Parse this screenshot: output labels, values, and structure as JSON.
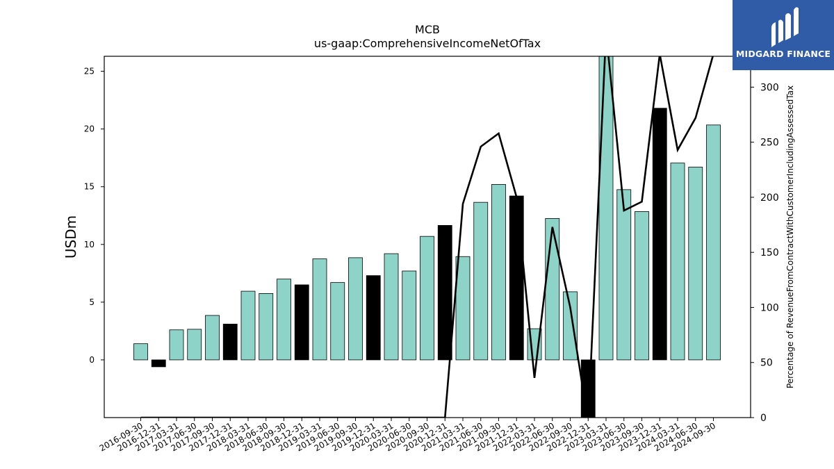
{
  "chart_data": {
    "type": "bar",
    "title": "MCB",
    "subtitle": "us-gaap:ComprehensiveIncomeNetOfTax",
    "ylabel": "USDm",
    "y2label": "Percentage of RevenueFromContractWithCustomerIncludingAssessedTax",
    "ylim": [
      -5,
      26.3
    ],
    "y2lim": [
      0,
      328
    ],
    "yticks": [
      0,
      5,
      10,
      15,
      20,
      25
    ],
    "y2ticks": [
      0,
      50,
      100,
      150,
      200,
      250,
      300
    ],
    "categories": [
      "2016-09-30",
      "2016-12-31",
      "2017-03-31",
      "2017-06-30",
      "2017-09-30",
      "2017-12-31",
      "2018-03-31",
      "2018-06-30",
      "2018-09-30",
      "2018-12-31",
      "2019-03-31",
      "2019-06-30",
      "2019-09-30",
      "2019-12-31",
      "2020-03-31",
      "2020-06-30",
      "2020-09-30",
      "2020-12-31",
      "2021-03-31",
      "2021-06-30",
      "2021-09-30",
      "2021-12-31",
      "2022-03-31",
      "2022-06-30",
      "2022-09-30",
      "2022-12-31",
      "2023-03-31",
      "2023-06-30",
      "2023-09-30",
      "2023-12-31",
      "2024-03-31",
      "2024-06-30",
      "2024-09-30"
    ],
    "series": [
      {
        "type": "bar",
        "axis": "left",
        "values": [
          1.4,
          -0.6,
          2.6,
          2.65,
          3.85,
          3.1,
          5.95,
          5.75,
          7.0,
          6.5,
          8.75,
          6.7,
          8.85,
          7.3,
          9.2,
          7.7,
          10.7,
          11.65,
          8.95,
          13.65,
          15.2,
          14.2,
          2.7,
          12.25,
          5.9,
          -5.0,
          26.3,
          14.75,
          12.85,
          21.8,
          17.05,
          16.7,
          20.35
        ],
        "highlight": [
          false,
          true,
          false,
          false,
          false,
          true,
          false,
          false,
          false,
          true,
          false,
          false,
          false,
          true,
          false,
          false,
          false,
          true,
          false,
          false,
          false,
          true,
          false,
          false,
          false,
          true,
          false,
          false,
          false,
          true,
          false,
          false,
          false
        ]
      },
      {
        "type": "line",
        "axis": "right",
        "values": [
          0,
          0,
          0,
          0,
          0,
          0,
          0,
          0,
          0,
          0,
          0,
          0,
          0,
          0,
          0,
          0,
          0,
          0,
          194,
          246,
          258,
          200,
          36,
          173,
          100,
          -5,
          350,
          188,
          196,
          330,
          243,
          272,
          330
        ]
      }
    ],
    "colors": {
      "bar": "#8dd3c7",
      "highlight_bar": "#000000",
      "line": "#000000",
      "edge": "#000000"
    }
  },
  "logo": {
    "text": "MIDGARD FINANCE",
    "background": "#2f5ba7"
  }
}
